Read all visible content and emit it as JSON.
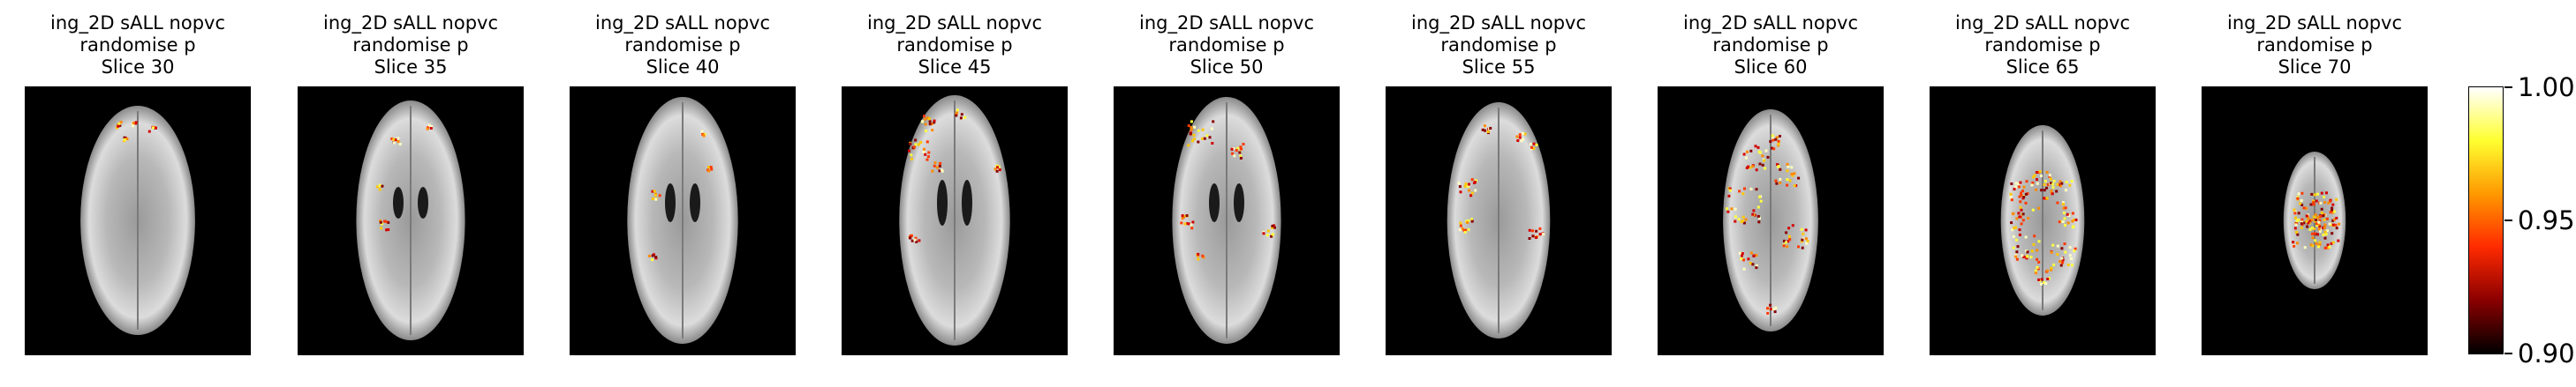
{
  "panels": [
    {
      "title_line1": "ing_2D sALL nopvc",
      "title_line2": "randomise p",
      "title_line3": "Slice 30",
      "slice": 30
    },
    {
      "title_line1": "ing_2D sALL nopvc",
      "title_line2": "randomise p",
      "title_line3": "Slice 35",
      "slice": 35
    },
    {
      "title_line1": "ing_2D sALL nopvc",
      "title_line2": "randomise p",
      "title_line3": "Slice 40",
      "slice": 40
    },
    {
      "title_line1": "ing_2D sALL nopvc",
      "title_line2": "randomise p",
      "title_line3": "Slice 45",
      "slice": 45
    },
    {
      "title_line1": "ing_2D sALL nopvc",
      "title_line2": "randomise p",
      "title_line3": "Slice 50",
      "slice": 50
    },
    {
      "title_line1": "ing_2D sALL nopvc",
      "title_line2": "randomise p",
      "title_line3": "Slice 55",
      "slice": 55
    },
    {
      "title_line1": "ing_2D sALL nopvc",
      "title_line2": "randomise p",
      "title_line3": "Slice 60",
      "slice": 60
    },
    {
      "title_line1": "ing_2D sALL nopvc",
      "title_line2": "randomise p",
      "title_line3": "Slice 65",
      "slice": 65
    },
    {
      "title_line1": "ing_2D sALL nopvc",
      "title_line2": "randomise p",
      "title_line3": "Slice 70",
      "slice": 70
    }
  ],
  "colorbar": {
    "ticks": [
      "1.00",
      "0.95",
      "0.90"
    ],
    "tick_values": [
      1.0,
      0.95,
      0.9
    ],
    "min": 0.9,
    "max": 1.0,
    "colormap": "hot",
    "colors": [
      "#000000",
      "#8a0000",
      "#ff2a00",
      "#ff9900",
      "#ffff30",
      "#ffffff"
    ]
  },
  "colors": {
    "background": "#000000",
    "brain_gray": "#c8c8c8"
  }
}
